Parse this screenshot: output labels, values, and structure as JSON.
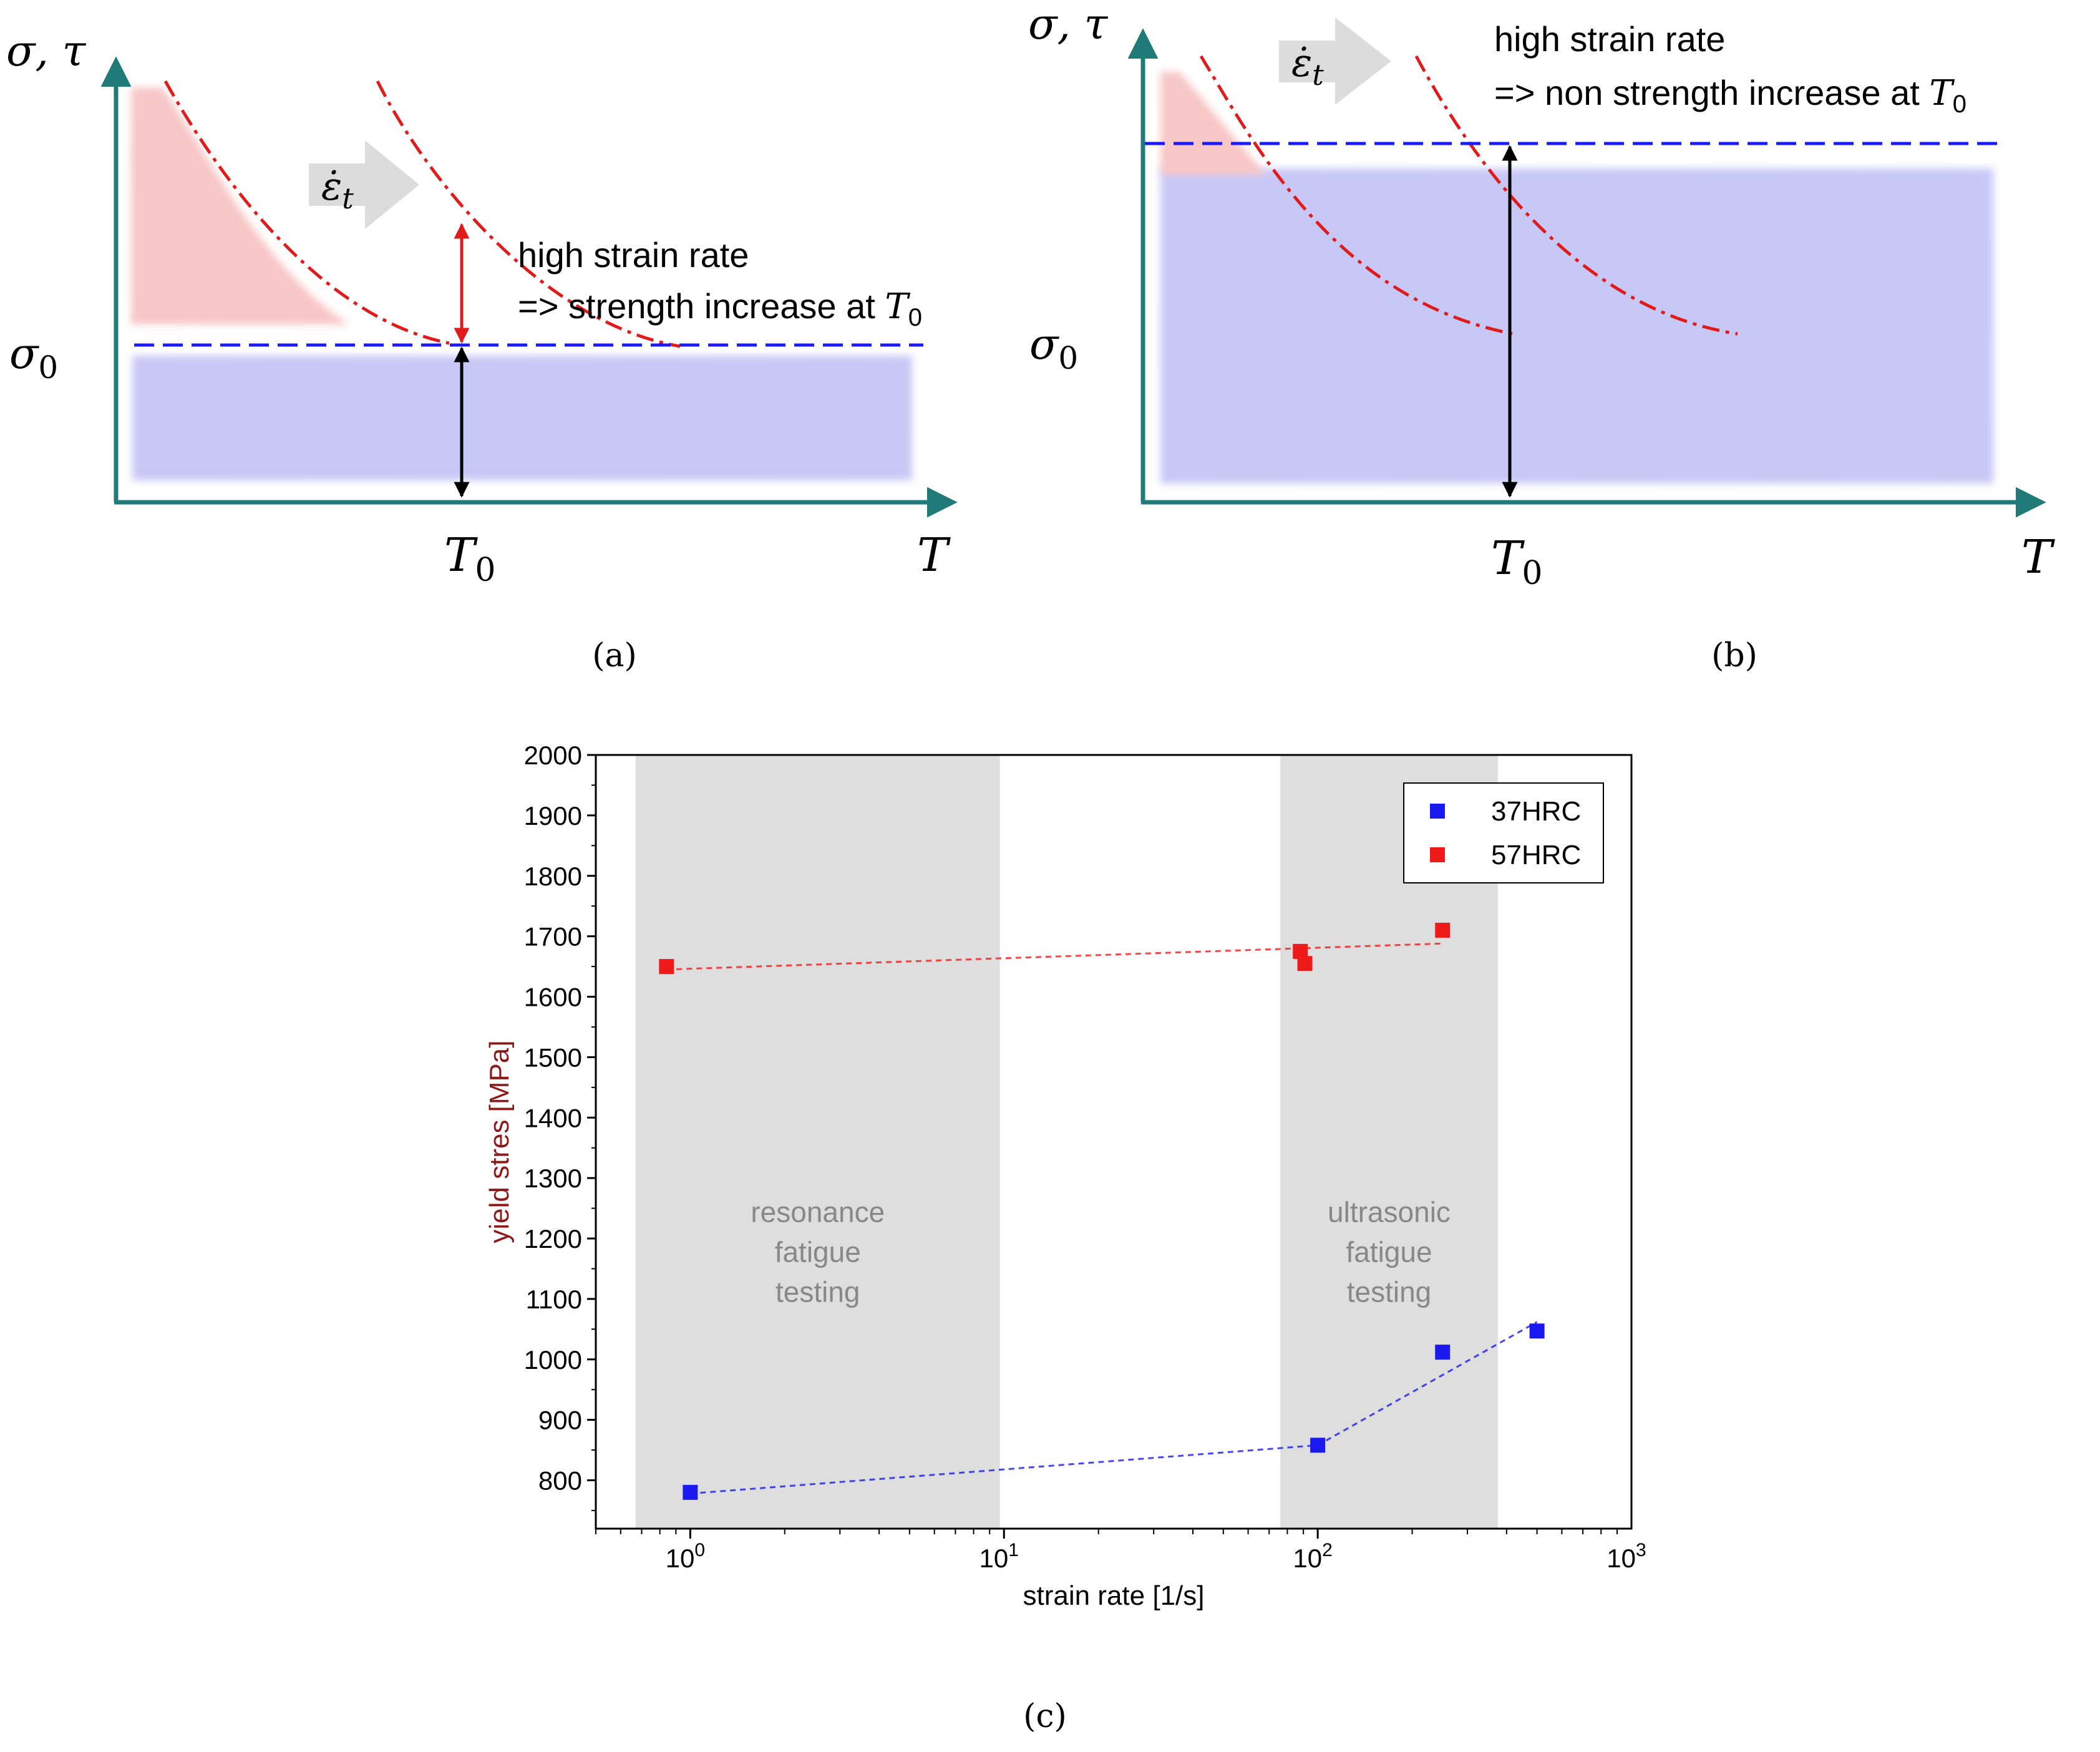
{
  "colors": {
    "axis": "#1f7a78",
    "blue_line": "#1a1aff",
    "red_curve": "#e01b1b",
    "red_fill": "#f4a6a6",
    "blue_fill": "#b7b7f3",
    "arrow_gray": "#dcdcdc",
    "band_gray": "#dedede",
    "series_37": "#1a1aee",
    "series_57": "#ee1a1a",
    "ylabel_color": "#8b1a1a"
  },
  "panel_a": {
    "caption": "(a)",
    "y_axis_label": "σ, τ",
    "sigma0_label": "σ",
    "sigma0_sub": "0",
    "t0_label": "T",
    "t0_sub": "0",
    "t_label": "T",
    "rate_symbol": "ε̇",
    "rate_sub": "t",
    "note_line1": "high strain rate",
    "note_line2": "=> strength increase at ",
    "note_t": "T",
    "note_sub": "0"
  },
  "panel_b": {
    "caption": "(b)",
    "y_axis_label": "σ, τ",
    "sigma0_label": "σ",
    "sigma0_sub": "0",
    "t0_label": "T",
    "t0_sub": "0",
    "t_label": "T",
    "rate_symbol": "ε̇",
    "rate_sub": "t",
    "note_line1": "high strain rate",
    "note_line2": "=> non strength increase at ",
    "note_t": "T",
    "note_sub": "0"
  },
  "panel_c": {
    "caption": "(c)",
    "chart_data": {
      "type": "scatter",
      "xlabel": "strain rate [1/s]",
      "ylabel": "yield stres [MPa]",
      "xscale": "log",
      "xlim": [
        0.5,
        1000
      ],
      "ylim": [
        720,
        2000
      ],
      "yticks": [
        800,
        900,
        1000,
        1100,
        1200,
        1300,
        1400,
        1500,
        1600,
        1700,
        1800,
        1900,
        2000
      ],
      "xticks": [
        {
          "value": 1,
          "base": "10",
          "exp": "0"
        },
        {
          "value": 10,
          "base": "10",
          "exp": "1"
        },
        {
          "value": 100,
          "base": "10",
          "exp": "2"
        },
        {
          "value": 1000,
          "base": "10",
          "exp": "3"
        }
      ],
      "legend_position": "top-right",
      "bands": [
        {
          "x0": 0.67,
          "x1": 9.7,
          "label": [
            "resonance",
            "fatigue",
            "testing"
          ]
        },
        {
          "x0": 76,
          "x1": 375,
          "label": [
            "ultrasonic",
            "fatigue",
            "testing"
          ]
        }
      ],
      "series": [
        {
          "name": "37HRC",
          "color": "#1a1aee",
          "points": [
            [
              1.0,
              780
            ],
            [
              100,
              858
            ],
            [
              250,
              1012
            ],
            [
              500,
              1047
            ]
          ],
          "fit": [
            [
              1.0,
              778
            ],
            [
              100,
              858
            ],
            [
              500,
              1062
            ]
          ]
        },
        {
          "name": "57HRC",
          "color": "#ee1a1a",
          "points": [
            [
              0.84,
              1650
            ],
            [
              88,
              1675
            ],
            [
              91,
              1655
            ],
            [
              250,
              1710
            ]
          ],
          "fit": [
            [
              0.84,
              1645
            ],
            [
              250,
              1688
            ]
          ]
        }
      ]
    }
  }
}
